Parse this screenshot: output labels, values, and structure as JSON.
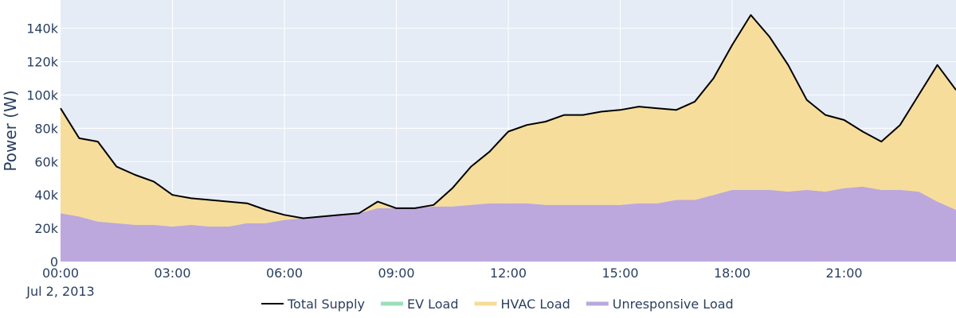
{
  "chart_data": {
    "type": "area",
    "ylabel": "Power (W)",
    "date_label": "Jul 2, 2013",
    "x_start": "2013-07-02 00:00",
    "x_end": "2013-07-02 24:00",
    "x_ticks": [
      "00:00",
      "03:00",
      "06:00",
      "09:00",
      "12:00",
      "15:00",
      "18:00",
      "21:00"
    ],
    "y_ticks": [
      "0",
      "20k",
      "40k",
      "60k",
      "80k",
      "100k",
      "120k",
      "140k"
    ],
    "ylim": [
      0,
      157000
    ],
    "grid": true,
    "legend_position": "bottom-center",
    "background_color": "#e5ecf6",
    "x": [
      "2013-07-02 00:00",
      "2013-07-02 00:30",
      "2013-07-02 01:00",
      "2013-07-02 01:30",
      "2013-07-02 02:00",
      "2013-07-02 02:30",
      "2013-07-02 03:00",
      "2013-07-02 03:30",
      "2013-07-02 04:00",
      "2013-07-02 04:30",
      "2013-07-02 05:00",
      "2013-07-02 05:30",
      "2013-07-02 06:00",
      "2013-07-02 06:30",
      "2013-07-02 07:00",
      "2013-07-02 07:30",
      "2013-07-02 08:00",
      "2013-07-02 08:30",
      "2013-07-02 09:00",
      "2013-07-02 09:30",
      "2013-07-02 10:00",
      "2013-07-02 10:30",
      "2013-07-02 11:00",
      "2013-07-02 11:30",
      "2013-07-02 12:00",
      "2013-07-02 12:30",
      "2013-07-02 13:00",
      "2013-07-02 13:30",
      "2013-07-02 14:00",
      "2013-07-02 14:30",
      "2013-07-02 15:00",
      "2013-07-02 15:30",
      "2013-07-02 16:00",
      "2013-07-02 16:30",
      "2013-07-02 17:00",
      "2013-07-02 17:30",
      "2013-07-02 18:00",
      "2013-07-02 18:30",
      "2013-07-02 19:00",
      "2013-07-02 19:30",
      "2013-07-02 20:00",
      "2013-07-02 20:30",
      "2013-07-02 21:00",
      "2013-07-02 21:30",
      "2013-07-02 22:00",
      "2013-07-02 22:30",
      "2013-07-02 23:00",
      "2013-07-02 23:30",
      "2013-07-02 24:00"
    ],
    "series": [
      {
        "name": "Total Supply",
        "kind": "line",
        "color": "#000000",
        "values": [
          92000,
          74000,
          72000,
          57000,
          52000,
          48000,
          40000,
          38000,
          37000,
          36000,
          35000,
          31000,
          28000,
          26000,
          27000,
          28000,
          29000,
          36000,
          32000,
          32000,
          34000,
          44000,
          57000,
          66000,
          78000,
          82000,
          84000,
          88000,
          88000,
          90000,
          91000,
          93000,
          92000,
          91000,
          96000,
          110000,
          130000,
          148000,
          135000,
          118000,
          97000,
          88000,
          85000,
          78000,
          72000,
          82000,
          100000,
          118000,
          103000
        ]
      },
      {
        "name": "EV Load",
        "kind": "area",
        "color": "#9ae0b8",
        "values": [
          0,
          0,
          0,
          0,
          0,
          0,
          0,
          0,
          0,
          0,
          0,
          0,
          0,
          0,
          0,
          0,
          0,
          0,
          0,
          0,
          0,
          0,
          0,
          0,
          0,
          0,
          0,
          0,
          0,
          0,
          0,
          0,
          0,
          0,
          0,
          0,
          0,
          0,
          0,
          0,
          0,
          0,
          0,
          0,
          0,
          0,
          0,
          0,
          0
        ]
      },
      {
        "name": "HVAC Load",
        "kind": "area",
        "color": "#f7dc96",
        "values": [
          63000,
          47000,
          48000,
          34000,
          30000,
          26000,
          19000,
          16000,
          16000,
          15000,
          12000,
          8000,
          3000,
          0,
          0,
          0,
          0,
          4000,
          0,
          0,
          1000,
          11000,
          23000,
          31000,
          43000,
          47000,
          50000,
          54000,
          54000,
          56000,
          57000,
          58000,
          57000,
          54000,
          59000,
          70000,
          87000,
          105000,
          92000,
          76000,
          54000,
          46000,
          41000,
          33000,
          29000,
          39000,
          58000,
          82000,
          72000
        ]
      },
      {
        "name": "Unresponsive Load",
        "kind": "area",
        "color": "#bca8dc",
        "values": [
          29000,
          27000,
          24000,
          23000,
          22000,
          22000,
          21000,
          22000,
          21000,
          21000,
          23000,
          23000,
          25000,
          26000,
          27000,
          28000,
          29000,
          32000,
          32000,
          32000,
          33000,
          33000,
          34000,
          35000,
          35000,
          35000,
          34000,
          34000,
          34000,
          34000,
          34000,
          35000,
          35000,
          37000,
          37000,
          40000,
          43000,
          43000,
          43000,
          42000,
          43000,
          42000,
          44000,
          45000,
          43000,
          43000,
          42000,
          36000,
          31000
        ]
      }
    ]
  }
}
